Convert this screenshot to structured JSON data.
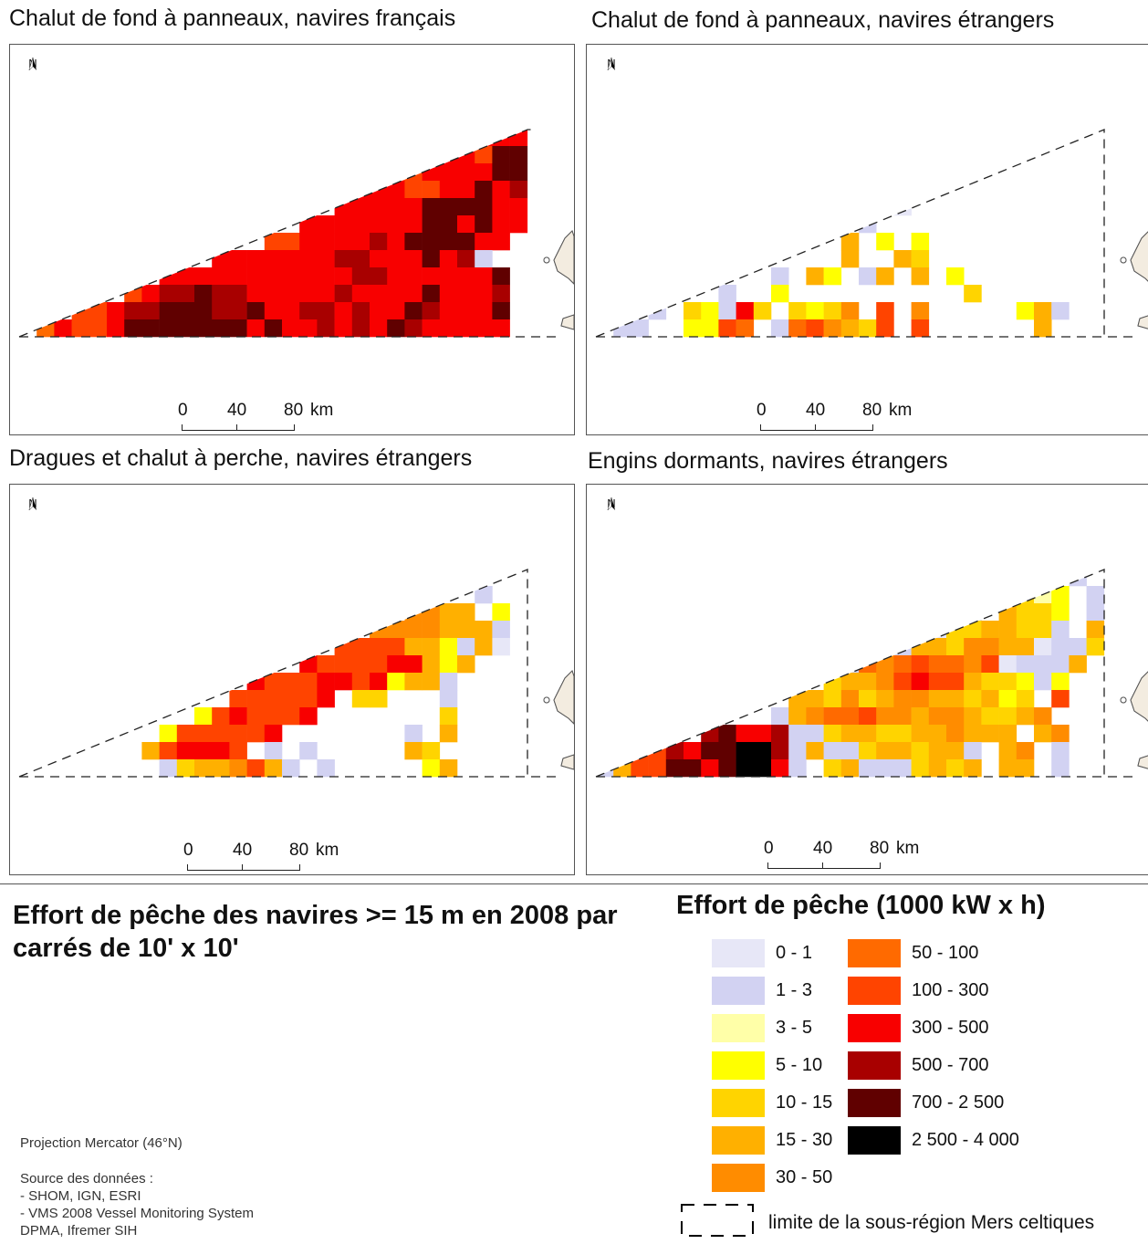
{
  "maps": [
    {
      "title": "Chalut de fond à panneaux, navires français",
      "north": "N",
      "scale": {
        "zero": "0",
        "mid": "40",
        "end": "80",
        "unit": "km"
      },
      "cells": "french_otter"
    },
    {
      "title": "Chalut de fond à panneaux, navires étrangers",
      "north": "N",
      "scale": {
        "zero": "0",
        "mid": "40",
        "end": "80",
        "unit": "km"
      },
      "cells": "foreign_otter"
    },
    {
      "title": "Dragues et chalut à perche, navires étrangers",
      "north": "N",
      "scale": {
        "zero": "0",
        "mid": "40",
        "end": "80",
        "unit": "km"
      },
      "cells": "foreign_dredge"
    },
    {
      "title": "Engins dormants, navires étrangers",
      "north": "N",
      "scale": {
        "zero": "0",
        "mid": "40",
        "end": "80",
        "unit": "km"
      },
      "cells": "foreign_static"
    }
  ],
  "main_title": "Effort de pêche des navires >= 15 m en 2008 par carrés de 10' x 10'",
  "projection": "Projection Mercator (46°N)",
  "source": [
    "Source des données :",
    "- SHOM, IGN, ESRI",
    "- VMS 2008 Vessel Monitoring System",
    "DPMA, Ifremer SIH"
  ],
  "legend": {
    "title": "Effort de pêche (1000 kW x h)",
    "classes": [
      {
        "label": "0 - 1",
        "color": "#e7e7f7"
      },
      {
        "label": "1 - 3",
        "color": "#d2d2f2"
      },
      {
        "label": "3 - 5",
        "color": "#ffffa8"
      },
      {
        "label": "5 - 10",
        "color": "#ffff00"
      },
      {
        "label": "10 - 15",
        "color": "#ffd400"
      },
      {
        "label": "15 - 30",
        "color": "#ffb000"
      },
      {
        "label": "30 - 50",
        "color": "#ff8c00"
      },
      {
        "label": "50 - 100",
        "color": "#ff6a00"
      },
      {
        "label": "100 - 300",
        "color": "#ff4400"
      },
      {
        "label": "300 - 500",
        "color": "#f80000"
      },
      {
        "label": "500 - 700",
        "color": "#a80000"
      },
      {
        "label": "700 - 2 500",
        "color": "#600000"
      },
      {
        "label": "2 500 - 4 000",
        "color": "#000000"
      }
    ],
    "boundary_label": "limite de la sous-région Mers celtiques"
  },
  "land_color": "#f3ece0"
}
